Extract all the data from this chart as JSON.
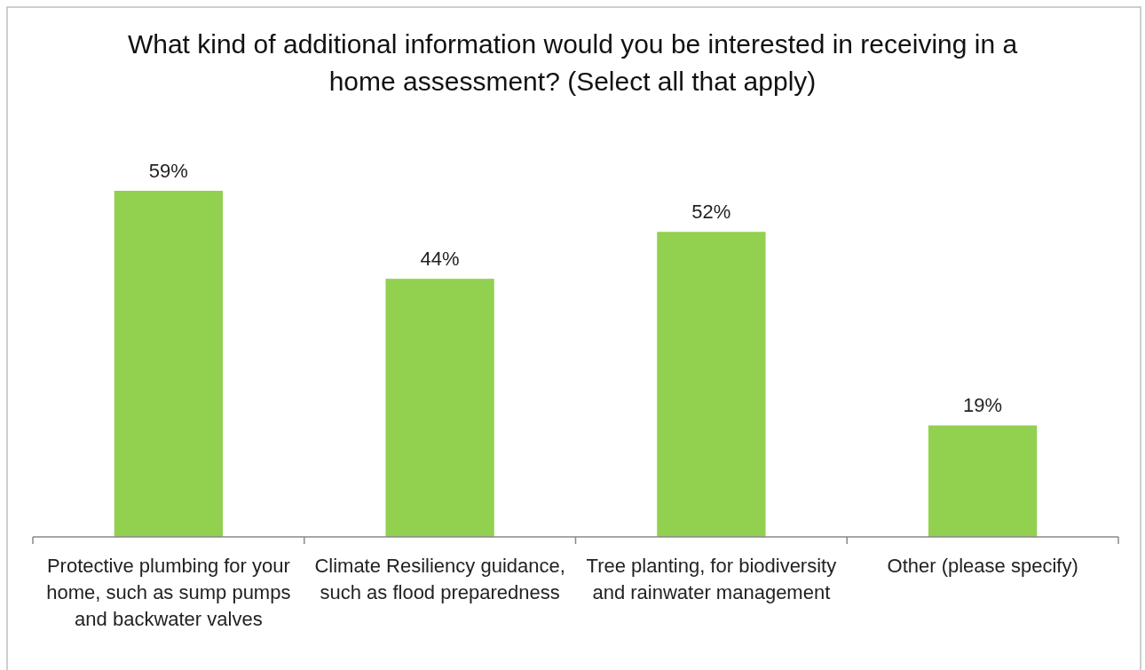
{
  "chart_data": {
    "type": "bar",
    "title": "What kind of additional information would you be interested in receiving in a home assessment? (Select all that apply)",
    "categories": [
      "Protective plumbing for your home, such as sump pumps and backwater valves",
      "Climate Resiliency guidance, such as flood preparedness",
      "Tree planting, for biodiversity and rainwater management",
      "Other (please specify)"
    ],
    "values": [
      59,
      44,
      52,
      19
    ],
    "value_labels": [
      "59%",
      "44%",
      "52%",
      "19%"
    ],
    "color": "#92d050"
  }
}
